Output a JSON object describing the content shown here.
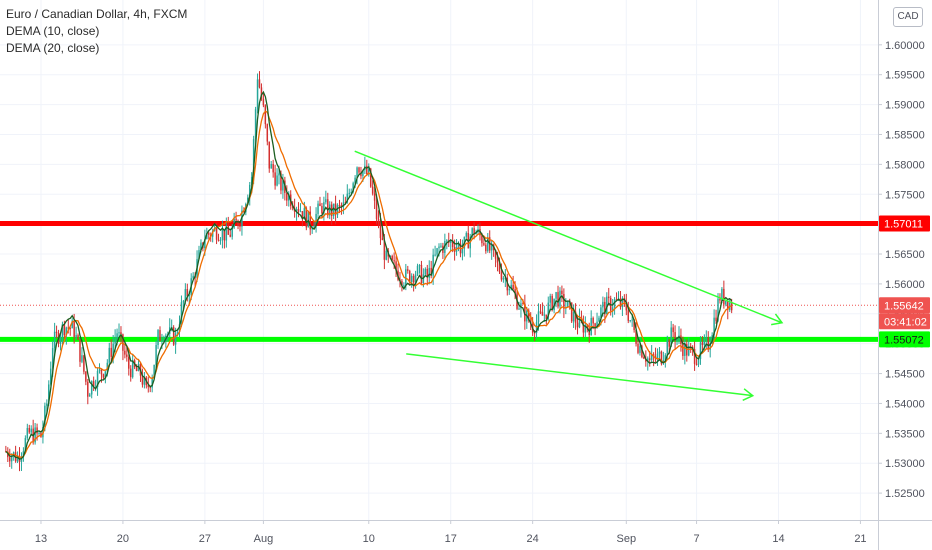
{
  "legend": {
    "title": "Euro / Canadian Dollar, 4h, FXCM",
    "study1": "DEMA (10, close)",
    "study2": "DEMA (20, close)"
  },
  "currency_button": "CAD",
  "colors": {
    "up": "#26a69a",
    "down": "#d32f2f",
    "ma_fast": "#1b5e20",
    "ma_slow": "#ef6c00",
    "resistance": "#ff0000",
    "support": "#00ff00",
    "channel": "#33ff33",
    "price_line": "#ef5350",
    "countdown_bg": "#ef5350"
  },
  "chart_data": {
    "type": "candlestick",
    "symbol": "Euro / Canadian Dollar",
    "interval": "4h",
    "source": "FXCM",
    "ylim": [
      1.5205,
      1.6075
    ],
    "y_ticks": [
      1.525,
      1.53,
      1.535,
      1.54,
      1.545,
      1.55,
      1.555,
      1.56,
      1.565,
      1.57,
      1.575,
      1.58,
      1.585,
      1.59,
      1.595,
      1.6
    ],
    "y_tick_labels": [
      "1.52500",
      "1.53000",
      "1.53500",
      "1.54000",
      "1.54500",
      "1.55000",
      "1.55500",
      "1.56000",
      "1.56500",
      "1.57000",
      "1.57500",
      "1.58000",
      "1.58500",
      "1.59000",
      "1.59500",
      "1.60000"
    ],
    "x_ticks": [
      {
        "label": "13",
        "day": 13
      },
      {
        "label": "20",
        "day": 20
      },
      {
        "label": "27",
        "day": 27
      },
      {
        "label": "Aug",
        "day": 32
      },
      {
        "label": "10",
        "day": 41
      },
      {
        "label": "17",
        "day": 48
      },
      {
        "label": "24",
        "day": 55
      },
      {
        "label": "Sep",
        "day": 63
      },
      {
        "label": "7",
        "day": 69
      },
      {
        "label": "14",
        "day": 76
      },
      {
        "label": "21",
        "day": 83
      }
    ],
    "grid": true,
    "price_path": [
      [
        10.0,
        1.532
      ],
      [
        11.0,
        1.531
      ],
      [
        12.0,
        1.535
      ],
      [
        13.0,
        1.5345
      ],
      [
        13.5,
        1.54
      ],
      [
        14.0,
        1.55
      ],
      [
        15.0,
        1.553
      ],
      [
        15.8,
        1.5525
      ],
      [
        16.5,
        1.547
      ],
      [
        17.0,
        1.542
      ],
      [
        17.5,
        1.544
      ],
      [
        18.5,
        1.546
      ],
      [
        19.5,
        1.552
      ],
      [
        20.5,
        1.546
      ],
      [
        21.5,
        1.545
      ],
      [
        22.0,
        1.542
      ],
      [
        22.5,
        1.545
      ],
      [
        23.0,
        1.551
      ],
      [
        23.5,
        1.552
      ],
      [
        24.5,
        1.551
      ],
      [
        25.0,
        1.556
      ],
      [
        26.0,
        1.561
      ],
      [
        27.0,
        1.568
      ],
      [
        28.0,
        1.569
      ],
      [
        29.0,
        1.568
      ],
      [
        30.0,
        1.571
      ],
      [
        31.0,
        1.578
      ],
      [
        31.5,
        1.595
      ],
      [
        32.0,
        1.589
      ],
      [
        32.5,
        1.58
      ],
      [
        33.0,
        1.578
      ],
      [
        34.0,
        1.575
      ],
      [
        35.0,
        1.573
      ],
      [
        36.0,
        1.57
      ],
      [
        37.0,
        1.573
      ],
      [
        38.0,
        1.572
      ],
      [
        39.0,
        1.573
      ],
      [
        40.0,
        1.58
      ],
      [
        41.0,
        1.578
      ],
      [
        42.0,
        1.568
      ],
      [
        42.5,
        1.564
      ],
      [
        43.0,
        1.563
      ],
      [
        44.0,
        1.561
      ],
      [
        45.0,
        1.562
      ],
      [
        46.0,
        1.561
      ],
      [
        47.0,
        1.566
      ],
      [
        48.0,
        1.567
      ],
      [
        49.0,
        1.566
      ],
      [
        50.0,
        1.569
      ],
      [
        51.0,
        1.567
      ],
      [
        52.0,
        1.563
      ],
      [
        53.0,
        1.56
      ],
      [
        54.0,
        1.556
      ],
      [
        55.0,
        1.553
      ],
      [
        56.0,
        1.555
      ],
      [
        57.0,
        1.558
      ],
      [
        58.0,
        1.556
      ],
      [
        59.0,
        1.553
      ],
      [
        60.0,
        1.553
      ],
      [
        61.0,
        1.556
      ],
      [
        62.0,
        1.557
      ],
      [
        63.0,
        1.556
      ],
      [
        64.0,
        1.55
      ],
      [
        65.0,
        1.547
      ],
      [
        66.0,
        1.548
      ],
      [
        67.0,
        1.552
      ],
      [
        68.0,
        1.549
      ],
      [
        69.0,
        1.548
      ],
      [
        70.0,
        1.55
      ],
      [
        71.0,
        1.558
      ],
      [
        71.5,
        1.5575
      ],
      [
        72.0,
        1.5564
      ]
    ],
    "current_price": "1.55642",
    "countdown": "03:41:02",
    "horizontal_levels": [
      {
        "price": 1.57011,
        "label": "1.57011",
        "color": "#ff0000"
      },
      {
        "price": 1.55072,
        "label": "1.55072",
        "color": "#00ff00"
      }
    ],
    "trend_lines": [
      {
        "from": [
          39.8,
          1.5822
        ],
        "to": [
          76.3,
          1.5535
        ],
        "arrow": true
      },
      {
        "from": [
          44.2,
          1.5483
        ],
        "to": [
          73.8,
          1.5413
        ],
        "arrow": true
      }
    ]
  }
}
